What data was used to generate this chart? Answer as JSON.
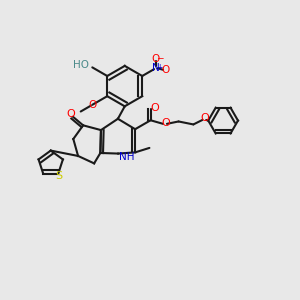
{
  "background_color": "#e8e8e8",
  "bond_color": "#1a1a1a",
  "atom_colors": {
    "O": "#ff0000",
    "N": "#0000cc",
    "S": "#cccc00",
    "H": "#4a8a8a",
    "C": "#1a1a1a"
  },
  "figsize": [
    3.0,
    3.0
  ],
  "dpi": 100
}
